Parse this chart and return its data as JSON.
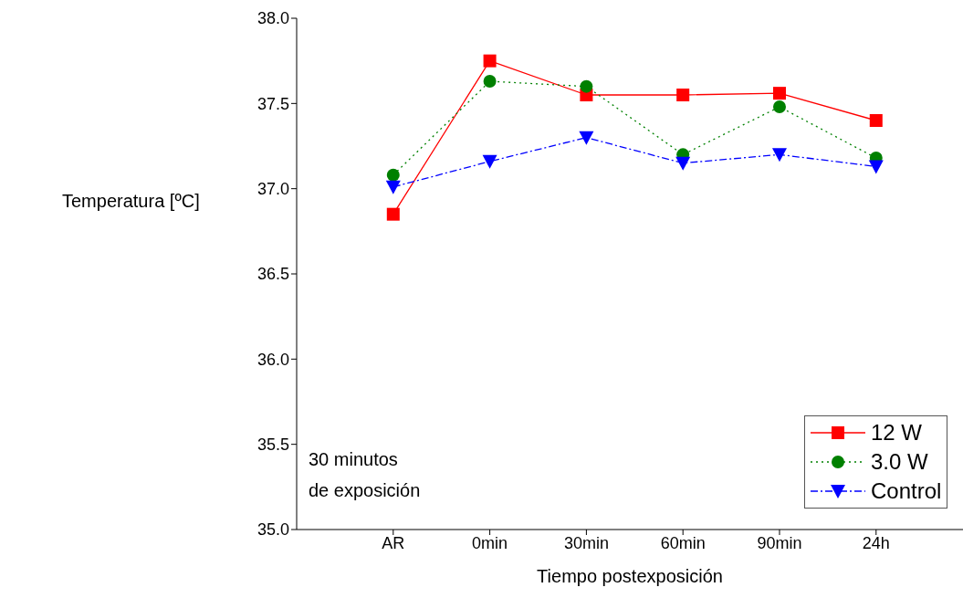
{
  "chart_data": {
    "type": "line",
    "xlabel": "Tiempo postexposición",
    "ylabel": "Temperatura [ºC]",
    "categories": [
      "AR",
      "0min",
      "30min",
      "60min",
      "90min",
      "24h"
    ],
    "series": [
      {
        "name": "12 W",
        "color": "#ff0000",
        "marker": "square",
        "line_style": "solid",
        "values": [
          36.85,
          37.75,
          37.55,
          37.55,
          37.56,
          37.4
        ]
      },
      {
        "name": "3.0 W",
        "color": "#008000",
        "marker": "circle",
        "line_style": "dotted",
        "values": [
          37.08,
          37.63,
          37.6,
          37.2,
          37.48,
          37.18
        ]
      },
      {
        "name": "Control",
        "color": "#0000ff",
        "marker": "triangle",
        "line_style": "dashed",
        "values": [
          37.01,
          37.16,
          37.3,
          37.15,
          37.2,
          37.13
        ]
      }
    ],
    "ylim": [
      35,
      38
    ],
    "yticks": [
      {
        "value": 35,
        "label": "35.0"
      },
      {
        "value": 35.5,
        "label": "35.5"
      },
      {
        "value": 36,
        "label": "36.0"
      },
      {
        "value": 36.5,
        "label": "36.5"
      },
      {
        "value": 37,
        "label": "37.0"
      },
      {
        "value": 37.5,
        "label": "37.5"
      },
      {
        "value": 38,
        "label": "38.0"
      }
    ],
    "grid": false,
    "legend": "bottom right",
    "annotations": [
      "30 minutos\nde exposición"
    ]
  }
}
